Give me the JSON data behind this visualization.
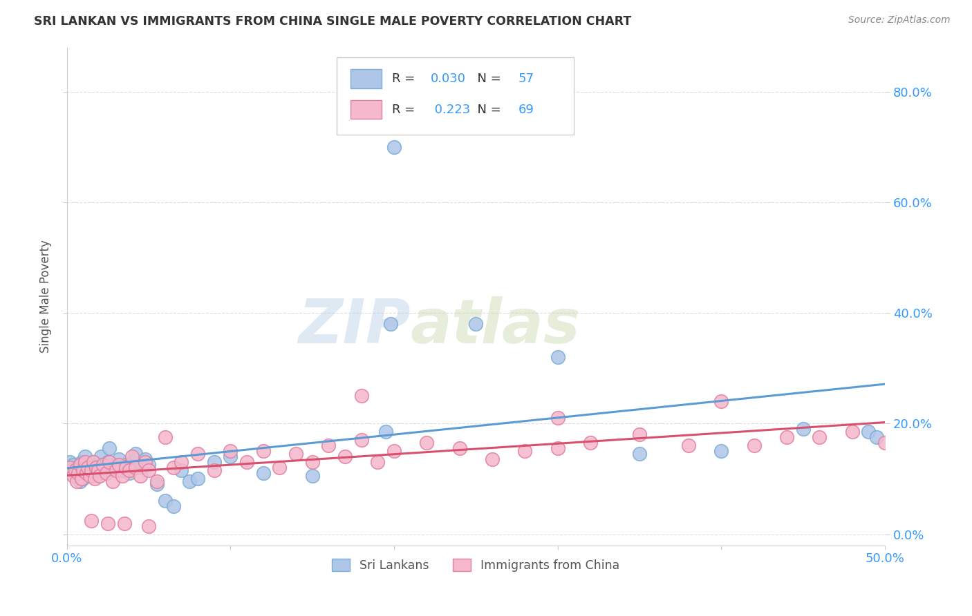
{
  "title": "SRI LANKAN VS IMMIGRANTS FROM CHINA SINGLE MALE POVERTY CORRELATION CHART",
  "source": "Source: ZipAtlas.com",
  "ylabel": "Single Male Poverty",
  "xlim": [
    0.0,
    0.5
  ],
  "ylim": [
    -0.02,
    0.88
  ],
  "xticks": [
    0.0,
    0.1,
    0.2,
    0.3,
    0.4,
    0.5
  ],
  "xtick_labels": [
    "0.0%",
    "",
    "",
    "",
    "",
    "50.0%"
  ],
  "yticks": [
    0.0,
    0.2,
    0.4,
    0.6,
    0.8
  ],
  "ytick_labels_left": [
    "",
    "",
    "",
    "",
    ""
  ],
  "ytick_labels_right": [
    "0.0%",
    "20.0%",
    "40.0%",
    "60.0%",
    "80.0%"
  ],
  "sri_lanka_color": "#aec6e8",
  "sri_lanka_edge_color": "#7aadd4",
  "china_color": "#f5b8cc",
  "china_edge_color": "#e080a0",
  "trend_sri_lanka_color": "#5b9bd5",
  "trend_china_color": "#d94f6e",
  "legend_R_color": "#3399ff",
  "sri_lankans_R": "0.030",
  "sri_lankans_N": "57",
  "china_R": "0.223",
  "china_N": "69",
  "watermark_zip": "ZIP",
  "watermark_atlas": "atlas",
  "background_color": "#ffffff",
  "grid_color": "#dddddd",
  "axis_label_color": "#3399ff",
  "sri_lankans_x": [
    0.002,
    0.004,
    0.005,
    0.005,
    0.006,
    0.007,
    0.008,
    0.009,
    0.01,
    0.01,
    0.011,
    0.012,
    0.013,
    0.014,
    0.015,
    0.015,
    0.016,
    0.017,
    0.018,
    0.019,
    0.02,
    0.021,
    0.022,
    0.023,
    0.025,
    0.026,
    0.028,
    0.03,
    0.032,
    0.034,
    0.036,
    0.038,
    0.04,
    0.042,
    0.045,
    0.048,
    0.05,
    0.055,
    0.06,
    0.065,
    0.07,
    0.075,
    0.08,
    0.09,
    0.1,
    0.12,
    0.15,
    0.2,
    0.25,
    0.3,
    0.35,
    0.4,
    0.45,
    0.49,
    0.495,
    0.198,
    0.195
  ],
  "sri_lankans_y": [
    0.13,
    0.125,
    0.115,
    0.105,
    0.12,
    0.11,
    0.095,
    0.13,
    0.115,
    0.1,
    0.14,
    0.12,
    0.11,
    0.125,
    0.115,
    0.105,
    0.13,
    0.12,
    0.11,
    0.125,
    0.115,
    0.14,
    0.125,
    0.115,
    0.13,
    0.155,
    0.12,
    0.125,
    0.135,
    0.115,
    0.125,
    0.11,
    0.13,
    0.145,
    0.12,
    0.135,
    0.125,
    0.09,
    0.06,
    0.05,
    0.115,
    0.095,
    0.1,
    0.13,
    0.14,
    0.11,
    0.105,
    0.7,
    0.38,
    0.32,
    0.145,
    0.15,
    0.19,
    0.185,
    0.175,
    0.38,
    0.185
  ],
  "china_x": [
    0.002,
    0.004,
    0.005,
    0.006,
    0.007,
    0.008,
    0.009,
    0.01,
    0.011,
    0.012,
    0.013,
    0.014,
    0.015,
    0.016,
    0.017,
    0.018,
    0.019,
    0.02,
    0.022,
    0.024,
    0.026,
    0.028,
    0.03,
    0.032,
    0.034,
    0.036,
    0.038,
    0.04,
    0.042,
    0.045,
    0.048,
    0.05,
    0.055,
    0.06,
    0.065,
    0.07,
    0.08,
    0.09,
    0.1,
    0.11,
    0.12,
    0.13,
    0.14,
    0.15,
    0.16,
    0.17,
    0.18,
    0.19,
    0.2,
    0.22,
    0.24,
    0.26,
    0.28,
    0.3,
    0.32,
    0.35,
    0.38,
    0.4,
    0.42,
    0.44,
    0.46,
    0.48,
    0.5,
    0.18,
    0.3,
    0.025,
    0.05,
    0.015,
    0.035
  ],
  "china_y": [
    0.12,
    0.105,
    0.115,
    0.095,
    0.11,
    0.125,
    0.1,
    0.115,
    0.13,
    0.11,
    0.12,
    0.105,
    0.115,
    0.13,
    0.1,
    0.12,
    0.115,
    0.105,
    0.125,
    0.11,
    0.13,
    0.095,
    0.115,
    0.125,
    0.105,
    0.12,
    0.115,
    0.14,
    0.12,
    0.105,
    0.13,
    0.115,
    0.095,
    0.175,
    0.12,
    0.13,
    0.145,
    0.115,
    0.15,
    0.13,
    0.15,
    0.12,
    0.145,
    0.13,
    0.16,
    0.14,
    0.17,
    0.13,
    0.15,
    0.165,
    0.155,
    0.135,
    0.15,
    0.155,
    0.165,
    0.18,
    0.16,
    0.24,
    0.16,
    0.175,
    0.175,
    0.185,
    0.165,
    0.25,
    0.21,
    0.02,
    0.015,
    0.025,
    0.02
  ]
}
